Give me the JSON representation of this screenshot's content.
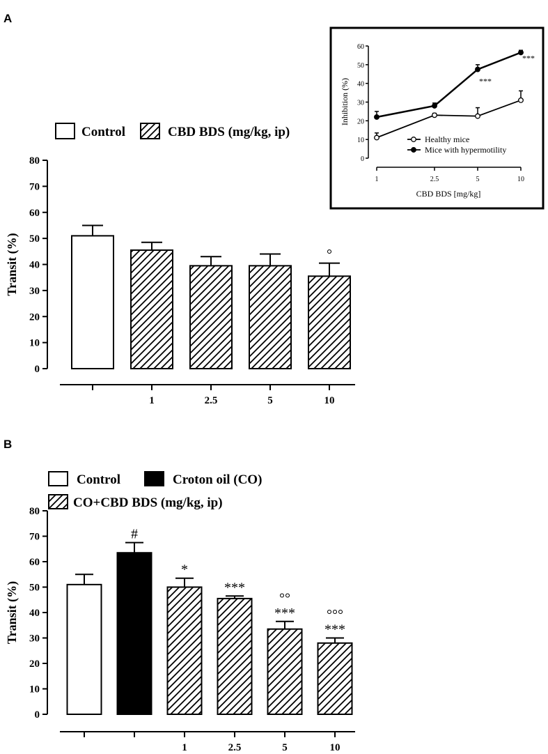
{
  "panels": {
    "a_label": "A",
    "b_label": "B"
  },
  "chart_data": [
    {
      "id": "panel-a-bar",
      "type": "bar",
      "ylabel": "Transit (%)",
      "ylim": [
        0,
        80
      ],
      "yticks": [
        0,
        10,
        20,
        30,
        40,
        50,
        60,
        70,
        80
      ],
      "categories": [
        "",
        "1",
        "2.5",
        "5",
        "10"
      ],
      "values": [
        51,
        45.5,
        39.5,
        39.5,
        35.5
      ],
      "errors": [
        4,
        3,
        3.5,
        4.5,
        5
      ],
      "styles": [
        "open",
        "hatch",
        "hatch",
        "hatch",
        "hatch"
      ],
      "annotations": [
        "",
        "",
        "",
        "",
        "°"
      ],
      "legend": [
        {
          "label": "Control",
          "style": "open"
        },
        {
          "label": "CBD BDS (mg/kg, ip)",
          "style": "hatch"
        }
      ]
    },
    {
      "id": "panel-a-inset",
      "type": "line",
      "xlabel": "CBD BDS [mg/kg]",
      "ylabel": "Inhibition (%)",
      "ylim": [
        0,
        60
      ],
      "yticks": [
        0,
        10,
        20,
        30,
        40,
        50,
        60
      ],
      "x": [
        "1",
        "2.5",
        "5",
        "10"
      ],
      "series": [
        {
          "name": "Healthy mice",
          "marker": "open",
          "values": [
            11,
            23,
            22.5,
            31
          ],
          "errors": [
            2.5,
            1,
            4.5,
            5
          ]
        },
        {
          "name": "Mice with hypermotility",
          "marker": "filled",
          "values": [
            22,
            28,
            47.5,
            56.5
          ],
          "errors": [
            3,
            1.5,
            2.5,
            1.2
          ]
        }
      ],
      "annotations": [
        {
          "series": 1,
          "index": 2,
          "text": "***"
        },
        {
          "series": 1,
          "index": 3,
          "text": "***"
        }
      ]
    },
    {
      "id": "panel-b-bar",
      "type": "bar",
      "ylabel": "Transit (%)",
      "ylim": [
        0,
        80
      ],
      "yticks": [
        0,
        10,
        20,
        30,
        40,
        50,
        60,
        70,
        80
      ],
      "categories": [
        "",
        "",
        "1",
        "2.5",
        "5",
        "10"
      ],
      "values": [
        51,
        63.5,
        50,
        45.5,
        33.5,
        28
      ],
      "errors": [
        4,
        4,
        3.5,
        1,
        3,
        2
      ],
      "styles": [
        "open",
        "solid",
        "hatch",
        "hatch",
        "hatch",
        "hatch"
      ],
      "annotations": [
        "",
        "#",
        "*",
        "***",
        "°°\n***",
        "°°°\n***"
      ],
      "legend": [
        {
          "label": "Control",
          "style": "open"
        },
        {
          "label": "Croton oil (CO)",
          "style": "solid"
        },
        {
          "label": "CO+CBD BDS (mg/kg, ip)",
          "style": "hatch"
        }
      ]
    }
  ]
}
